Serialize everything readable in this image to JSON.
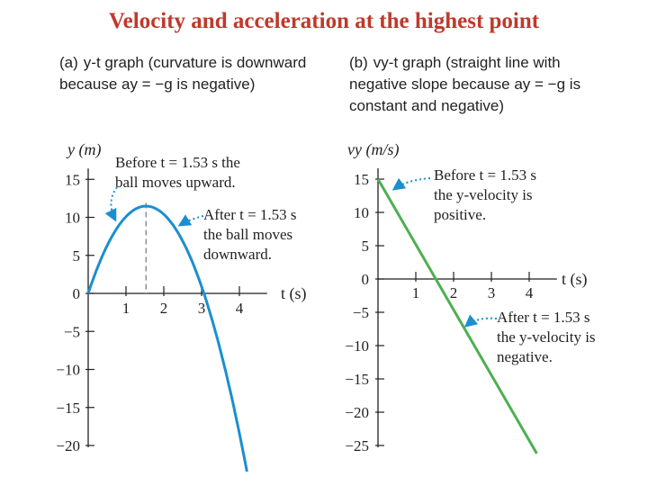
{
  "slide": {
    "title": "Velocity and acceleration at the highest point",
    "title_color": "#c0392b"
  },
  "panel_a": {
    "tag": "(a)",
    "caption": "y-t graph (curvature is downward because ay = −g is negative)"
  },
  "panel_b": {
    "tag": "(b)",
    "caption": "vy-t graph (straight line with negative slope because ay = −g is constant and negative)"
  },
  "chart_data": [
    {
      "type": "line",
      "panel": "a",
      "ylabel": "y (m)",
      "xlabel": "t (s)",
      "xlim": [
        0,
        4.4
      ],
      "ylim": [
        -20,
        15
      ],
      "x_ticks": [
        1,
        2,
        3,
        4
      ],
      "y_ticks": [
        15,
        10,
        5,
        0,
        -5,
        -10,
        -15,
        -20
      ],
      "y_tick_labels": [
        "15",
        "10",
        "5",
        "0",
        "−5",
        "−10",
        "−15",
        "−20"
      ],
      "grid": false,
      "series": [
        {
          "color": "#1a8fd0",
          "x": [
            0,
            0.4,
            0.8,
            1.2,
            1.53,
            2.0,
            2.4,
            2.8,
            3.06,
            3.4,
            3.8,
            4.2
          ],
          "y": [
            0,
            5.2,
            9.0,
            11.3,
            11.9,
            10.9,
            8.5,
            4.6,
            0,
            -4.8,
            -12.6,
            -21.3
          ]
        }
      ],
      "marker": {
        "x": 1.53,
        "y": 11.9,
        "style": "dashed"
      },
      "annotations": [
        {
          "line1": "Before t = 1.53 s the",
          "line2": "ball moves upward."
        },
        {
          "line1": "After t = 1.53 s",
          "line2": "the ball moves",
          "line3": "downward."
        }
      ]
    },
    {
      "type": "line",
      "panel": "b",
      "ylabel": "vy (m/s)",
      "xlabel": "t (s)",
      "xlim": [
        0,
        4.4
      ],
      "ylim": [
        -25,
        15
      ],
      "x_ticks": [
        1,
        2,
        3,
        4
      ],
      "y_ticks": [
        15,
        10,
        5,
        0,
        -5,
        -10,
        -15,
        -20,
        -25
      ],
      "y_tick_labels": [
        "15",
        "10",
        "5",
        "0",
        "−5",
        "−10",
        "−15",
        "−20",
        "−25"
      ],
      "grid": false,
      "series": [
        {
          "color": "#4cb050",
          "x": [
            0,
            4.2
          ],
          "y": [
            15,
            -26.2
          ]
        }
      ],
      "annotations": [
        {
          "line1": "Before t = 1.53 s",
          "line2": "the y-velocity is",
          "line3": "positive."
        },
        {
          "line1": "After t = 1.53 s",
          "line2": "the y-velocity is",
          "line3": "negative."
        }
      ]
    }
  ]
}
